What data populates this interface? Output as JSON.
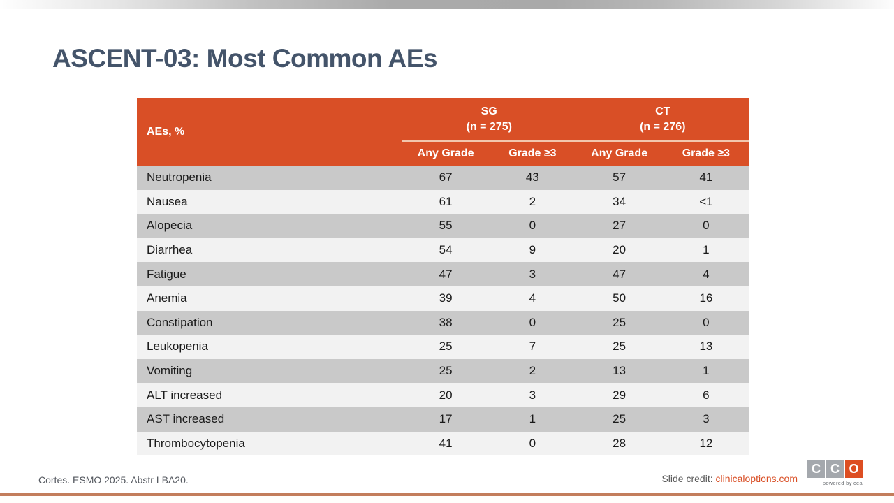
{
  "slide": {
    "title": "ASCENT-03: Most Common AEs",
    "footer": {
      "reference": "Cortes. ESMO 2025. Abstr LBA20.",
      "credit_label": "Slide credit: ",
      "credit_link": "clinicaloptions.com"
    },
    "logo": {
      "block1": "C",
      "block2": "C",
      "block3": "O",
      "tagline": "powered by cea"
    }
  },
  "colors": {
    "header_orange": "#D94F26",
    "header_separator_line": "#F2C6AD",
    "row_gray": "#C9C9C9",
    "row_light": "#F2F2F2",
    "title_color": "#44546A",
    "bottom_accent": "#C37D5B",
    "link_color": "#D94F26",
    "logo_gray": "#A4A8AD",
    "logo_orange": "#DD4E22"
  },
  "chart_data": {
    "type": "table",
    "title": "ASCENT-03: Most Common AEs",
    "corner_header": "AEs, %",
    "column_groups": [
      {
        "name": "SG",
        "n": "(n = 275)"
      },
      {
        "name": "CT",
        "n": "(n = 276)"
      }
    ],
    "sub_headers": [
      "Any Grade",
      "Grade ≥3",
      "Any Grade",
      "Grade ≥3"
    ],
    "rows": [
      {
        "label": "Neutropenia",
        "values": [
          "67",
          "43",
          "57",
          "41"
        ]
      },
      {
        "label": "Nausea",
        "values": [
          "61",
          "2",
          "34",
          "<1"
        ]
      },
      {
        "label": "Alopecia",
        "values": [
          "55",
          "0",
          "27",
          "0"
        ]
      },
      {
        "label": "Diarrhea",
        "values": [
          "54",
          "9",
          "20",
          "1"
        ]
      },
      {
        "label": "Fatigue",
        "values": [
          "47",
          "3",
          "47",
          "4"
        ]
      },
      {
        "label": "Anemia",
        "values": [
          "39",
          "4",
          "50",
          "16"
        ]
      },
      {
        "label": "Constipation",
        "values": [
          "38",
          "0",
          "25",
          "0"
        ]
      },
      {
        "label": "Leukopenia",
        "values": [
          "25",
          "7",
          "25",
          "13"
        ]
      },
      {
        "label": "Vomiting",
        "values": [
          "25",
          "2",
          "13",
          "1"
        ]
      },
      {
        "label": "ALT increased",
        "values": [
          "20",
          "3",
          "29",
          "6"
        ]
      },
      {
        "label": "AST increased",
        "values": [
          "17",
          "1",
          "25",
          "3"
        ]
      },
      {
        "label": "Thrombocytopenia",
        "values": [
          "41",
          "0",
          "28",
          "12"
        ]
      }
    ]
  }
}
